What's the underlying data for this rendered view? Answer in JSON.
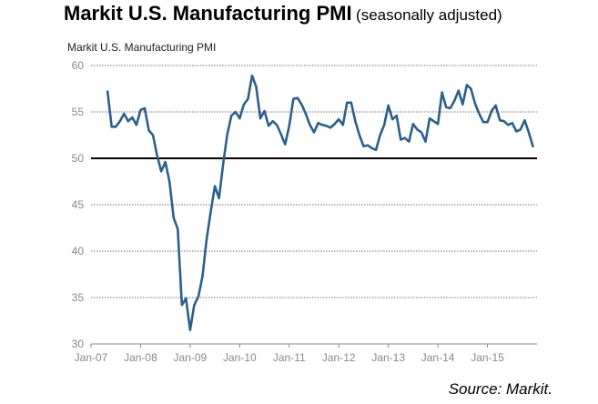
{
  "title": {
    "main": "Markit U.S. Manufacturing PMI",
    "sub": "(seasonally adjusted)"
  },
  "source": "Source: Markit.",
  "chart_data": {
    "type": "line",
    "title": "Markit U.S. Manufacturing PMI",
    "xlabel": "",
    "ylabel": "",
    "ylim": [
      30,
      60
    ],
    "yticks": [
      30,
      35,
      40,
      45,
      50,
      55,
      60
    ],
    "xlim": [
      "2007-01",
      "2015-12"
    ],
    "xticks": [
      "Jan-07",
      "Jan-08",
      "Jan-09",
      "Jan-10",
      "Jan-11",
      "Jan-12",
      "Jan-13",
      "Jan-14",
      "Jan-15"
    ],
    "reference_line": 50,
    "grid": "horizontal dotted",
    "colors": {
      "line": "#2b5f8c",
      "reference": "#000000",
      "grid": "#444444",
      "tick_text": "#888888"
    },
    "series": [
      {
        "x": [
          "2007-05",
          "2007-06",
          "2007-07",
          "2007-08",
          "2007-09",
          "2007-10",
          "2007-11",
          "2007-12",
          "2008-01",
          "2008-02",
          "2008-03",
          "2008-04",
          "2008-05",
          "2008-06",
          "2008-07",
          "2008-08",
          "2008-09",
          "2008-10",
          "2008-11",
          "2008-12",
          "2009-01",
          "2009-02",
          "2009-03",
          "2009-04",
          "2009-05",
          "2009-06",
          "2009-07",
          "2009-08",
          "2009-09",
          "2009-10",
          "2009-11",
          "2009-12",
          "2010-01",
          "2010-02",
          "2010-03",
          "2010-04",
          "2010-05",
          "2010-06",
          "2010-07",
          "2010-08",
          "2010-09",
          "2010-10",
          "2010-11",
          "2010-12",
          "2011-01",
          "2011-02",
          "2011-03",
          "2011-04",
          "2011-05",
          "2011-06",
          "2011-07",
          "2011-08",
          "2011-09",
          "2011-10",
          "2011-11",
          "2011-12",
          "2012-01",
          "2012-02",
          "2012-03",
          "2012-04",
          "2012-05",
          "2012-06",
          "2012-07",
          "2012-08",
          "2012-09",
          "2012-10",
          "2012-11",
          "2012-12",
          "2013-01",
          "2013-02",
          "2013-03",
          "2013-04",
          "2013-05",
          "2013-06",
          "2013-07",
          "2013-08",
          "2013-09",
          "2013-10",
          "2013-11",
          "2013-12",
          "2014-01",
          "2014-02",
          "2014-03",
          "2014-04",
          "2014-05",
          "2014-06",
          "2014-07",
          "2014-08",
          "2014-09",
          "2014-10",
          "2014-11",
          "2014-12",
          "2015-01",
          "2015-02",
          "2015-03",
          "2015-04",
          "2015-05",
          "2015-06",
          "2015-07",
          "2015-08",
          "2015-09",
          "2015-10",
          "2015-11",
          "2015-12"
        ],
        "y": [
          57.2,
          53.4,
          53.4,
          54.0,
          54.8,
          54.0,
          54.4,
          53.6,
          55.2,
          55.4,
          53.0,
          52.5,
          50.3,
          48.6,
          49.6,
          47.5,
          43.6,
          42.4,
          34.2,
          34.9,
          31.5,
          34.2,
          35.1,
          37.3,
          41.3,
          44.3,
          47.0,
          45.7,
          49.4,
          52.6,
          54.6,
          55.0,
          54.3,
          55.8,
          56.4,
          58.9,
          57.7,
          54.3,
          55.1,
          53.5,
          54.0,
          53.6,
          52.6,
          51.5,
          53.5,
          56.4,
          56.5,
          55.8,
          54.8,
          53.6,
          52.8,
          53.8,
          53.6,
          53.5,
          53.3,
          53.7,
          54.2,
          53.6,
          56.0,
          56.0,
          54.0,
          52.5,
          51.3,
          51.4,
          51.1,
          50.9,
          52.5,
          53.6,
          55.7,
          54.2,
          54.6,
          52.0,
          52.2,
          51.8,
          53.7,
          53.1,
          52.8,
          51.8,
          54.3,
          54.0,
          53.7,
          57.1,
          55.5,
          55.4,
          56.2,
          57.3,
          55.8,
          57.9,
          57.5,
          55.9,
          54.8,
          53.9,
          53.9,
          55.1,
          55.7,
          54.1,
          54.0,
          53.6,
          53.8,
          52.9,
          53.1,
          54.1,
          52.8,
          51.3
        ]
      }
    ]
  }
}
